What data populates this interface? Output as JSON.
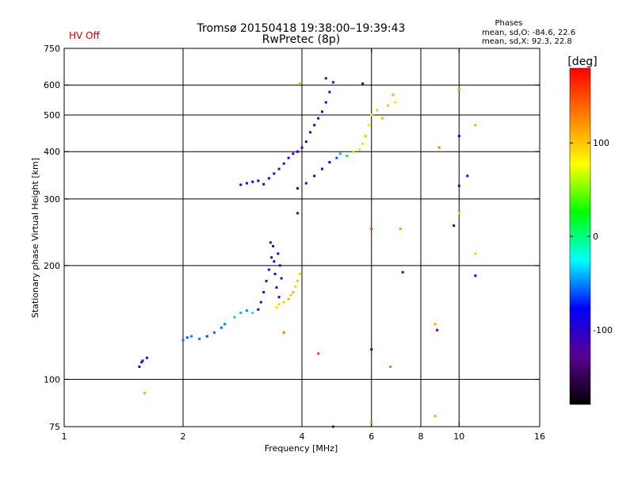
{
  "status": {
    "hv_label": "HV Off",
    "hv_color": "#cc0000"
  },
  "header": {
    "title_line1": "Tromsø 20150418 19:38:00–19:39:43",
    "title_line2": "RwPretec (8p)"
  },
  "stats": {
    "title": "Phases",
    "line_o": "mean, sd,O: -84.6, 22.6",
    "line_x": "mean, sd,X: 92.3, 22.8"
  },
  "chart_data": {
    "type": "scatter",
    "xlabel": "Frequency [MHz]",
    "ylabel": "Stationary phase Virtual Height [km]",
    "x_scale": "log",
    "y_scale": "log",
    "xlim": [
      1,
      16
    ],
    "ylim": [
      75,
      750
    ],
    "x_ticks": [
      1,
      2,
      4,
      6,
      8,
      10,
      16
    ],
    "x_tick_labels": [
      "1",
      "2",
      "4",
      "6",
      "8",
      "10",
      "16"
    ],
    "x_grid": [
      2,
      4,
      6,
      8,
      10
    ],
    "y_ticks": [
      75,
      100,
      200,
      300,
      400,
      500,
      600,
      750
    ],
    "y_tick_labels": [
      "75",
      "100",
      "200",
      "300",
      "400",
      "500",
      "600",
      "750"
    ],
    "y_grid": [
      100,
      200,
      300,
      400,
      500,
      600
    ],
    "grid": true,
    "colorbar": {
      "label": "[deg]",
      "range": [
        -180,
        180
      ],
      "ticks": [
        100,
        0,
        -100
      ],
      "tick_labels": [
        "100",
        "0",
        "-100"
      ],
      "colors": [
        "#000000",
        "#5a0090",
        "#0000ff",
        "#00ffff",
        "#00ff00",
        "#ffff00",
        "#ff8000",
        "#ff0000"
      ]
    },
    "series": [
      {
        "points": [
          [
            1.55,
            108,
            -105
          ],
          [
            1.58,
            112,
            -105
          ],
          [
            1.62,
            114,
            -100
          ],
          [
            1.57,
            111,
            -120
          ],
          [
            2.0,
            127,
            -55
          ],
          [
            2.05,
            129,
            -60
          ],
          [
            2.1,
            130,
            -50
          ],
          [
            2.2,
            128,
            -55
          ],
          [
            2.3,
            130,
            -65
          ],
          [
            2.4,
            133,
            -55
          ],
          [
            2.5,
            137,
            -55
          ],
          [
            2.55,
            140,
            -50
          ],
          [
            2.7,
            146,
            -40
          ],
          [
            2.8,
            150,
            -40
          ],
          [
            2.9,
            152,
            -50
          ],
          [
            3.0,
            150,
            -30
          ],
          [
            3.1,
            153,
            -85
          ],
          [
            3.15,
            160,
            -100
          ],
          [
            3.2,
            170,
            -110
          ],
          [
            3.25,
            182,
            -115
          ],
          [
            3.3,
            195,
            -120
          ],
          [
            3.35,
            210,
            -110
          ],
          [
            3.38,
            225,
            -120
          ],
          [
            3.4,
            205,
            -100
          ],
          [
            3.42,
            190,
            -110
          ],
          [
            3.45,
            175,
            -120
          ],
          [
            3.5,
            165,
            -115
          ],
          [
            3.55,
            185,
            -110
          ],
          [
            3.52,
            200,
            -100
          ],
          [
            3.48,
            215,
            -95
          ],
          [
            3.33,
            230,
            -115
          ],
          [
            3.45,
            155,
            90
          ],
          [
            3.5,
            158,
            95
          ],
          [
            3.6,
            160,
            100
          ],
          [
            3.7,
            163,
            110
          ],
          [
            3.75,
            167,
            100
          ],
          [
            3.8,
            170,
            105
          ],
          [
            3.85,
            176,
            95
          ],
          [
            3.9,
            182,
            100
          ],
          [
            3.95,
            190,
            90
          ],
          [
            2.8,
            327,
            -85
          ],
          [
            2.9,
            330,
            -90
          ],
          [
            3.0,
            333,
            -80
          ],
          [
            3.1,
            335,
            -100
          ],
          [
            3.2,
            328,
            -110
          ],
          [
            3.3,
            340,
            -90
          ],
          [
            3.4,
            350,
            -105
          ],
          [
            3.5,
            360,
            -115
          ],
          [
            3.6,
            372,
            -110
          ],
          [
            3.7,
            385,
            -95
          ],
          [
            3.8,
            395,
            -100
          ],
          [
            3.9,
            400,
            -110
          ],
          [
            4.0,
            410,
            -105
          ],
          [
            4.1,
            425,
            -100
          ],
          [
            4.2,
            450,
            -115
          ],
          [
            4.3,
            470,
            -100
          ],
          [
            4.4,
            490,
            -110
          ],
          [
            4.5,
            510,
            -100
          ],
          [
            4.6,
            540,
            -95
          ],
          [
            4.7,
            575,
            -105
          ],
          [
            3.9,
            320,
            -100
          ],
          [
            4.1,
            330,
            -110
          ],
          [
            4.3,
            345,
            -100
          ],
          [
            4.5,
            360,
            -90
          ],
          [
            4.7,
            375,
            -80
          ],
          [
            4.9,
            385,
            -60
          ],
          [
            5.0,
            395,
            -40
          ],
          [
            5.2,
            390,
            20
          ],
          [
            5.4,
            400,
            60
          ],
          [
            5.6,
            405,
            90
          ],
          [
            5.7,
            420,
            95
          ],
          [
            5.8,
            440,
            100
          ],
          [
            5.9,
            470,
            90
          ],
          [
            6.0,
            500,
            80
          ],
          [
            6.2,
            515,
            100
          ],
          [
            6.4,
            490,
            110
          ],
          [
            6.6,
            530,
            100
          ],
          [
            6.8,
            565,
            110
          ],
          [
            6.9,
            540,
            90
          ],
          [
            3.95,
            605,
            110
          ],
          [
            4.8,
            610,
            -120
          ],
          [
            5.7,
            605,
            -110
          ],
          [
            4.6,
            625,
            -130
          ],
          [
            10.0,
            585,
            120
          ],
          [
            10.0,
            440,
            -100
          ],
          [
            10.5,
            345,
            -90
          ],
          [
            10.0,
            325,
            -100
          ],
          [
            10.0,
            275,
            60
          ],
          [
            9.7,
            255,
            -110
          ],
          [
            11.0,
            470,
            110
          ],
          [
            11.0,
            215,
            100
          ],
          [
            11.0,
            188,
            -90
          ],
          [
            8.9,
            410,
            130
          ],
          [
            8.8,
            135,
            -120
          ],
          [
            8.7,
            140,
            110
          ],
          [
            8.7,
            80,
            110
          ],
          [
            7.1,
            250,
            120
          ],
          [
            7.2,
            192,
            -120
          ],
          [
            6.0,
            250,
            150
          ],
          [
            6.0,
            120,
            -110
          ],
          [
            6.7,
            108,
            130
          ],
          [
            6.0,
            77,
            120
          ],
          [
            4.8,
            75,
            -120
          ],
          [
            4.4,
            117,
            150
          ],
          [
            3.6,
            133,
            130
          ],
          [
            3.9,
            275,
            -110
          ],
          [
            1.6,
            92,
            110
          ]
        ]
      }
    ]
  }
}
